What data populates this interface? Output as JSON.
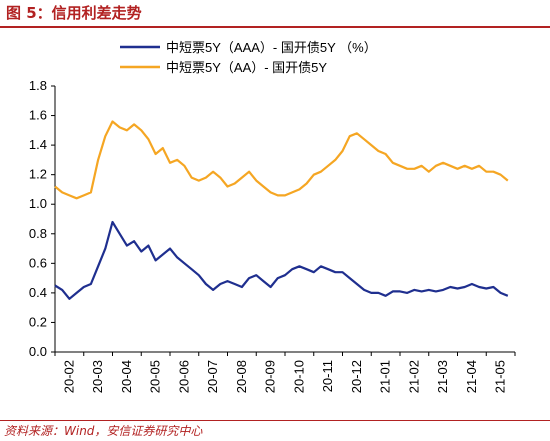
{
  "figure": {
    "title": "图 5：信用利差走势",
    "source": "资料来源：Wind，安信证券研究中心"
  },
  "colors": {
    "aaa_series": "#1f2f8f",
    "aa_series": "#f5a623",
    "accent": "#b22222"
  },
  "chart_data": {
    "type": "line",
    "title": "",
    "xlabel": "",
    "ylabel": "",
    "ylim": [
      0.0,
      1.8
    ],
    "yticks": [
      "0.0",
      "0.2",
      "0.4",
      "0.6",
      "0.8",
      "1.0",
      "1.2",
      "1.4",
      "1.6",
      "1.8"
    ],
    "xticks": [
      "20-02",
      "20-03",
      "20-04",
      "20-05",
      "20-06",
      "20-07",
      "20-08",
      "20-09",
      "20-10",
      "20-11",
      "20-12",
      "21-01",
      "21-02",
      "21-03",
      "21-04",
      "21-05"
    ],
    "x_range": [
      0,
      16
    ],
    "grid": false,
    "legend_position": "top",
    "x": [
      0.0,
      0.25,
      0.5,
      0.75,
      1.0,
      1.25,
      1.5,
      1.75,
      2.0,
      2.25,
      2.5,
      2.75,
      3.0,
      3.25,
      3.5,
      3.75,
      4.0,
      4.25,
      4.5,
      4.75,
      5.0,
      5.25,
      5.5,
      5.75,
      6.0,
      6.25,
      6.5,
      6.75,
      7.0,
      7.25,
      7.5,
      7.75,
      8.0,
      8.25,
      8.5,
      8.75,
      9.0,
      9.25,
      9.5,
      9.75,
      10.0,
      10.25,
      10.5,
      10.75,
      11.0,
      11.25,
      11.5,
      11.75,
      12.0,
      12.25,
      12.5,
      12.75,
      13.0,
      13.25,
      13.5,
      13.75,
      14.0,
      14.25,
      14.5,
      14.75,
      15.0,
      15.25,
      15.5,
      15.75
    ],
    "series": [
      {
        "name": "中短票5Y（AAA）- 国开债5Y （%）",
        "values": [
          0.45,
          0.42,
          0.36,
          0.4,
          0.44,
          0.46,
          0.58,
          0.7,
          0.88,
          0.8,
          0.72,
          0.75,
          0.68,
          0.72,
          0.62,
          0.66,
          0.7,
          0.64,
          0.6,
          0.56,
          0.52,
          0.46,
          0.42,
          0.46,
          0.48,
          0.46,
          0.44,
          0.5,
          0.52,
          0.48,
          0.44,
          0.5,
          0.52,
          0.56,
          0.58,
          0.56,
          0.54,
          0.58,
          0.56,
          0.54,
          0.54,
          0.5,
          0.46,
          0.42,
          0.4,
          0.4,
          0.38,
          0.41,
          0.41,
          0.4,
          0.42,
          0.41,
          0.42,
          0.41,
          0.42,
          0.44,
          0.43,
          0.44,
          0.46,
          0.44,
          0.43,
          0.44,
          0.4,
          0.38
        ]
      },
      {
        "name": "中短票5Y（AA）- 国开债5Y",
        "values": [
          1.12,
          1.08,
          1.06,
          1.04,
          1.06,
          1.08,
          1.3,
          1.46,
          1.56,
          1.52,
          1.5,
          1.54,
          1.5,
          1.44,
          1.34,
          1.38,
          1.28,
          1.3,
          1.26,
          1.18,
          1.16,
          1.18,
          1.22,
          1.18,
          1.12,
          1.14,
          1.18,
          1.22,
          1.16,
          1.12,
          1.08,
          1.06,
          1.06,
          1.08,
          1.1,
          1.14,
          1.2,
          1.22,
          1.26,
          1.3,
          1.36,
          1.46,
          1.48,
          1.44,
          1.4,
          1.36,
          1.34,
          1.28,
          1.26,
          1.24,
          1.24,
          1.26,
          1.22,
          1.26,
          1.28,
          1.26,
          1.24,
          1.26,
          1.24,
          1.26,
          1.22,
          1.22,
          1.2,
          1.16
        ]
      }
    ]
  }
}
